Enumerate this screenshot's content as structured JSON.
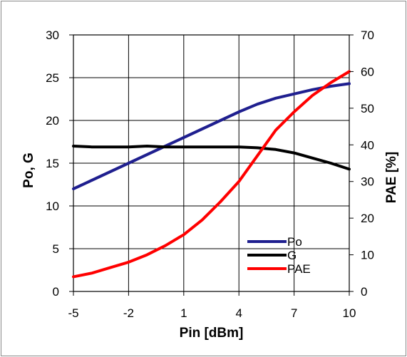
{
  "chart_data": {
    "type": "line",
    "xlabel": "Pin [dBm]",
    "ylabel_left": "Po, G",
    "ylabel_right": "PAE [%]",
    "xlim": [
      -5,
      10
    ],
    "ylim_left": [
      0,
      30
    ],
    "ylim_right": [
      0,
      70
    ],
    "x_ticks": [
      "-5",
      "-2",
      "1",
      "4",
      "7",
      "10"
    ],
    "x_tick_values": [
      -5,
      -2,
      1,
      4,
      7,
      10
    ],
    "y_left_ticks": [
      "0",
      "5",
      "10",
      "15",
      "20",
      "25",
      "30"
    ],
    "y_left_tick_values": [
      0,
      5,
      10,
      15,
      20,
      25,
      30
    ],
    "y_right_ticks": [
      "0",
      "10",
      "20",
      "30",
      "40",
      "50",
      "60",
      "70"
    ],
    "y_right_tick_values": [
      0,
      10,
      20,
      30,
      40,
      50,
      60,
      70
    ],
    "grid": true,
    "legend_position": "bottom-right",
    "series": [
      {
        "name": "Po",
        "axis": "left",
        "color": "#1f1f8f",
        "points": [
          [
            -5,
            12.0
          ],
          [
            -4,
            13.0
          ],
          [
            -3,
            14.0
          ],
          [
            -2,
            15.0
          ],
          [
            -1,
            16.0
          ],
          [
            0,
            17.0
          ],
          [
            1,
            18.0
          ],
          [
            2,
            19.0
          ],
          [
            3,
            20.0
          ],
          [
            4,
            21.0
          ],
          [
            5,
            21.9
          ],
          [
            6,
            22.6
          ],
          [
            7,
            23.1
          ],
          [
            8,
            23.6
          ],
          [
            9,
            24.0
          ],
          [
            10,
            24.3
          ]
        ]
      },
      {
        "name": "G",
        "axis": "left",
        "color": "#000000",
        "points": [
          [
            -5,
            17.0
          ],
          [
            -4,
            16.9
          ],
          [
            -3,
            16.9
          ],
          [
            -2,
            16.9
          ],
          [
            -1,
            17.0
          ],
          [
            0,
            16.9
          ],
          [
            1,
            16.9
          ],
          [
            2,
            16.9
          ],
          [
            3,
            16.9
          ],
          [
            4,
            16.9
          ],
          [
            5,
            16.8
          ],
          [
            6,
            16.6
          ],
          [
            7,
            16.2
          ],
          [
            8,
            15.6
          ],
          [
            9,
            15.0
          ],
          [
            10,
            14.3
          ]
        ]
      },
      {
        "name": "PAE",
        "axis": "right",
        "color": "#ff0000",
        "points": [
          [
            -5,
            4.0
          ],
          [
            -4,
            5.0
          ],
          [
            -3,
            6.5
          ],
          [
            -2,
            8.0
          ],
          [
            -1,
            10.0
          ],
          [
            0,
            12.5
          ],
          [
            1,
            15.5
          ],
          [
            2,
            19.5
          ],
          [
            3,
            24.5
          ],
          [
            4,
            30.0
          ],
          [
            5,
            37.0
          ],
          [
            6,
            44.0
          ],
          [
            7,
            49.0
          ],
          [
            8,
            53.5
          ],
          [
            9,
            57.0
          ],
          [
            10,
            60.0
          ]
        ]
      }
    ]
  }
}
